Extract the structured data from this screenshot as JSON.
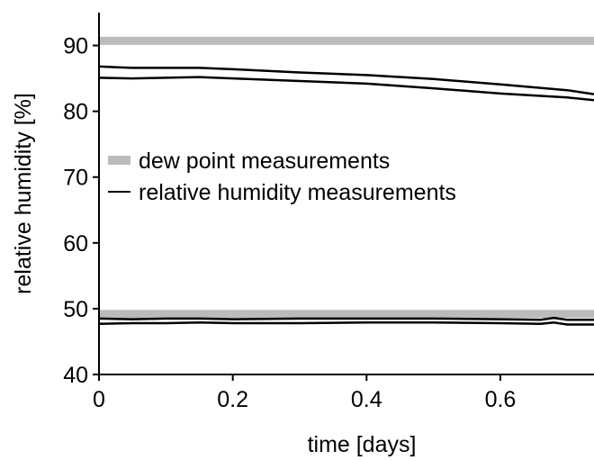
{
  "chart_data": {
    "type": "line",
    "xlabel": "time [days]",
    "ylabel": "relative humidity [%]",
    "xlim": [
      0,
      0.74
    ],
    "ylim": [
      40,
      95
    ],
    "xticks": [
      0,
      0.2,
      0.4,
      0.6
    ],
    "xtick_labels": [
      "0",
      "0.2",
      "0.4",
      "0.6"
    ],
    "yticks": [
      40,
      50,
      60,
      70,
      80,
      90
    ],
    "ytick_labels": [
      "40",
      "50",
      "60",
      "70",
      "80",
      "90"
    ],
    "grid": false,
    "legend_position": "center-left",
    "legend": [
      {
        "label": "dew point measurements",
        "style": "thick-gray"
      },
      {
        "label": "relative humidity measurements",
        "style": "thin-black"
      }
    ],
    "series": [
      {
        "name": "dew point measurements",
        "color": "#bbbbbb",
        "segments": [
          {
            "x": [
              0,
              0.74
            ],
            "y": [
              90.7,
              90.7
            ]
          },
          {
            "x": [
              0,
              0.74
            ],
            "y": [
              49.2,
              49.2
            ]
          }
        ]
      },
      {
        "name": "relative humidity measurements",
        "color": "#000000",
        "segments": [
          {
            "x": [
              0,
              0.05,
              0.1,
              0.15,
              0.2,
              0.3,
              0.4,
              0.5,
              0.6,
              0.7,
              0.74
            ],
            "y": [
              86.8,
              86.6,
              86.6,
              86.6,
              86.4,
              85.9,
              85.5,
              84.9,
              84.1,
              83.2,
              82.6
            ]
          },
          {
            "x": [
              0,
              0.05,
              0.1,
              0.15,
              0.2,
              0.3,
              0.4,
              0.5,
              0.6,
              0.7,
              0.74
            ],
            "y": [
              85.1,
              85.0,
              85.1,
              85.2,
              85.0,
              84.6,
              84.2,
              83.5,
              82.7,
              82.1,
              81.7
            ]
          },
          {
            "x": [
              0,
              0.05,
              0.1,
              0.15,
              0.2,
              0.3,
              0.4,
              0.5,
              0.6,
              0.66,
              0.68,
              0.7,
              0.74
            ],
            "y": [
              48.5,
              48.4,
              48.5,
              48.5,
              48.4,
              48.5,
              48.5,
              48.5,
              48.4,
              48.3,
              48.6,
              48.3,
              48.3
            ]
          },
          {
            "x": [
              0,
              0.05,
              0.1,
              0.15,
              0.2,
              0.3,
              0.4,
              0.5,
              0.6,
              0.66,
              0.68,
              0.7,
              0.74
            ],
            "y": [
              47.7,
              47.8,
              47.8,
              47.9,
              47.8,
              47.8,
              47.9,
              47.9,
              47.8,
              47.7,
              47.9,
              47.6,
              47.6
            ]
          }
        ]
      }
    ]
  }
}
